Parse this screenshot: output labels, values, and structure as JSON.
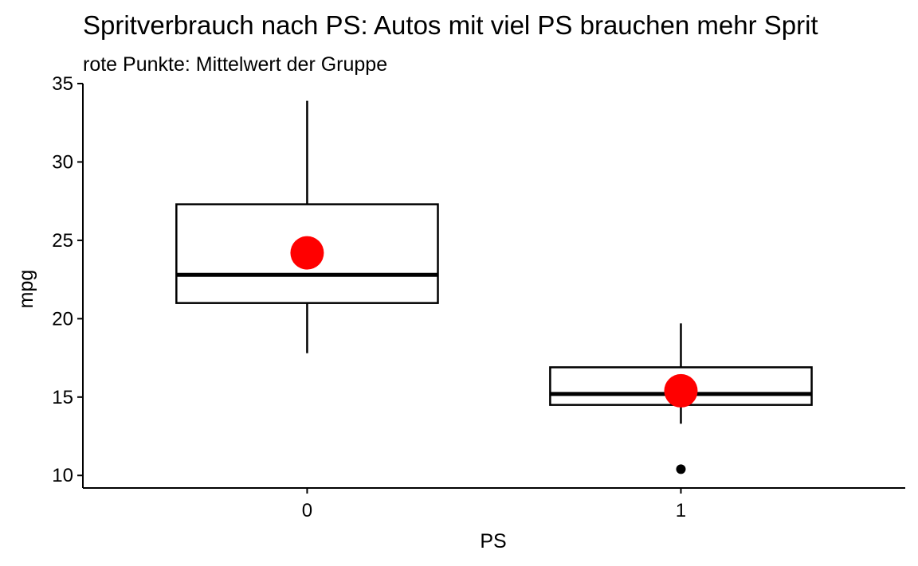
{
  "chart_data": {
    "type": "boxplot",
    "title": "Spritverbrauch nach PS: Autos mit viel PS brauchen mehr Sprit",
    "subtitle": "rote Punkte: Mittelwert der Gruppe",
    "xlabel": "PS",
    "ylabel": "mpg",
    "categories": [
      "0",
      "1"
    ],
    "ylim": [
      9.2,
      35
    ],
    "yticks": [
      10,
      15,
      20,
      25,
      30,
      35
    ],
    "grid": false,
    "boxes": [
      {
        "category": "0",
        "whisker_low": 17.8,
        "q1": 21.0,
        "median": 22.8,
        "q3": 27.3,
        "whisker_high": 33.9,
        "mean": 24.2,
        "outliers": []
      },
      {
        "category": "1",
        "whisker_low": 13.3,
        "q1": 14.5,
        "median": 15.2,
        "q3": 16.9,
        "whisker_high": 19.7,
        "mean": 15.4,
        "outliers": [
          10.4
        ]
      }
    ],
    "colors": {
      "mean_point": "#ff0000",
      "box_line": "#000000",
      "outlier": "#000000"
    }
  }
}
